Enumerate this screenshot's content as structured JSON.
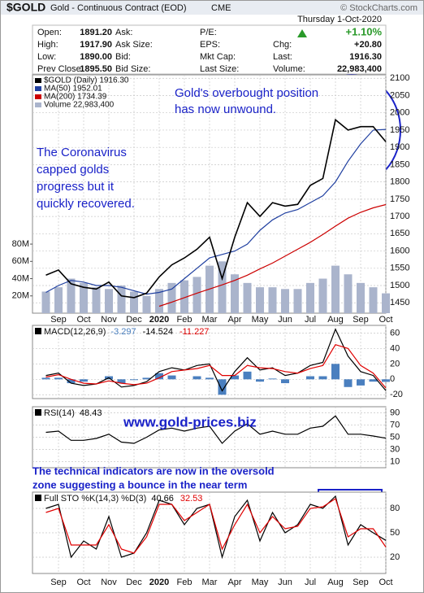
{
  "header": {
    "symbol": "$GOLD",
    "name": "Gold - Continuous Contract (EOD)",
    "exchange": "CME",
    "credit": "© StockCharts.com",
    "date": "Thursday  1-Oct-2020",
    "quote": [
      [
        {
          "label": "Open:",
          "value": "1891.20"
        },
        {
          "label": "Ask:"
        },
        {
          "label": "P/E:"
        },
        {
          "value": "+1.10%"
        }
      ],
      [
        {
          "label": "High:",
          "value": "1917.90"
        },
        {
          "label": "Ask Size:"
        },
        {
          "label": "EPS:"
        },
        {
          "label": "Chg:",
          "value": "+20.80"
        }
      ],
      [
        {
          "label": "Low:",
          "value": "1890.00"
        },
        {
          "label": "Bid:"
        },
        {
          "label": "Mkt Cap:"
        },
        {
          "label": "Last:",
          "value": "1916.30"
        }
      ],
      [
        {
          "label": "Prev Close:",
          "value": "1895.50"
        },
        {
          "label": "Bid Size:"
        },
        {
          "label": "Last Size:"
        },
        {
          "label": "Volume:",
          "value": "22,983,400"
        }
      ]
    ]
  },
  "annotations": [
    {
      "lines": [
        "Gold's overbought position",
        "has now unwound."
      ]
    },
    {
      "lines": [
        "The Coronavirus",
        "capped golds",
        "progress but it",
        "quickly recovered."
      ]
    },
    {
      "lines": [
        "www.gold-prices.biz"
      ]
    },
    {
      "lines": [
        "The technical indicators are now in the oversold",
        "zone suggesting a bounce in the near term"
      ]
    }
  ],
  "chart_data": [
    {
      "type": "line",
      "categories": [
        null,
        "Sep",
        null,
        "Oct",
        null,
        "Nov",
        null,
        "Dec",
        null,
        "2020",
        null,
        "Feb",
        null,
        "Mar",
        null,
        "Apr",
        null,
        "May",
        null,
        "Jun",
        null,
        "Jul",
        null,
        "Aug",
        null,
        "Sep",
        null,
        "Oct"
      ],
      "ylim": [
        1420,
        2110
      ],
      "yticks": [
        1450,
        1500,
        1550,
        1600,
        1650,
        1700,
        1750,
        1800,
        1850,
        1900,
        1950,
        2000,
        2050,
        2100
      ],
      "y2lim": [
        0,
        276
      ],
      "y2ticks": [
        {
          "value": 20,
          "label": "20M"
        },
        {
          "value": 40,
          "label": "40M"
        },
        {
          "value": 60,
          "label": "60M"
        },
        {
          "value": 80,
          "label": "80M"
        }
      ],
      "grid": true,
      "series": [
        {
          "name": "Volume 22,983,400",
          "color": "#aab4cc",
          "style": "bar",
          "axis": "y2",
          "values": [
            25,
            30,
            40,
            35,
            30,
            28,
            32,
            25,
            20,
            28,
            35,
            38,
            42,
            55,
            60,
            45,
            35,
            30,
            30,
            28,
            28,
            35,
            40,
            55,
            45,
            35,
            30,
            22.98
          ]
        },
        {
          "name": "MA(200) 1734.39",
          "color": "#cc0000",
          "values": [
            null,
            null,
            null,
            null,
            null,
            null,
            null,
            null,
            null,
            1440,
            1452,
            1465,
            1478,
            1490,
            1502,
            1515,
            1530,
            1548,
            1565,
            1585,
            1605,
            1625,
            1648,
            1672,
            1695,
            1712,
            1725,
            1734.39
          ]
        },
        {
          "name": "MA(50) 1952.01",
          "color": "#1f3fa0",
          "values": [
            1480,
            1500,
            1515,
            1510,
            1500,
            1500,
            1495,
            1485,
            1475,
            1480,
            1490,
            1520,
            1550,
            1580,
            1590,
            1600,
            1620,
            1660,
            1690,
            1710,
            1720,
            1740,
            1760,
            1800,
            1860,
            1910,
            1950,
            1952.01
          ]
        },
        {
          "name": "$GOLD (Daily) 1916.30",
          "color": "#000000",
          "values": [
            1530,
            1545,
            1505,
            1495,
            1490,
            1510,
            1470,
            1465,
            1478,
            1525,
            1560,
            1580,
            1605,
            1640,
            1520,
            1640,
            1740,
            1700,
            1740,
            1730,
            1735,
            1790,
            1810,
            1980,
            1950,
            1960,
            1960,
            1916.3
          ]
        }
      ]
    },
    {
      "type": "line",
      "title": "MACD(12,26,9)",
      "ylim": [
        -25,
        70
      ],
      "yticks": [
        -20,
        0,
        20,
        40,
        60
      ],
      "grid": true,
      "series": [
        {
          "color": "#4a7fbf",
          "style": "bar",
          "values": [
            2,
            2,
            -5,
            -3,
            0,
            4,
            -5,
            -1,
            2,
            8,
            5,
            0,
            4,
            2,
            -20,
            5,
            10,
            -3,
            1,
            -5,
            0,
            4,
            4,
            20,
            -10,
            -8,
            -3,
            -3.297
          ]
        },
        {
          "color": "#000000",
          "values": [
            5,
            8,
            -5,
            -8,
            -6,
            2,
            -10,
            -8,
            -3,
            10,
            15,
            12,
            18,
            20,
            -15,
            10,
            28,
            12,
            15,
            5,
            8,
            18,
            22,
            65,
            30,
            10,
            5,
            -14.524
          ]
        },
        {
          "color": "#e00000",
          "values": [
            3,
            6,
            0,
            -5,
            -6,
            -2,
            -5,
            -7,
            -5,
            2,
            10,
            12,
            14,
            18,
            5,
            5,
            18,
            15,
            14,
            10,
            8,
            14,
            18,
            45,
            40,
            18,
            8,
            -11.227
          ]
        }
      ]
    },
    {
      "type": "line",
      "title": "RSI(14)",
      "ylim": [
        0,
        100
      ],
      "yticks": [
        10,
        30,
        50,
        70,
        90
      ],
      "grid": true,
      "series": [
        {
          "color": "#000000",
          "values": [
            58,
            60,
            45,
            45,
            48,
            55,
            42,
            40,
            50,
            62,
            65,
            60,
            65,
            68,
            40,
            60,
            72,
            55,
            60,
            55,
            55,
            65,
            68,
            85,
            55,
            55,
            52,
            48.43
          ]
        }
      ]
    },
    {
      "type": "line",
      "title": "Full STO %K(14,3) %D(3)",
      "ylim": [
        0,
        100
      ],
      "yticks": [
        20,
        50,
        80
      ],
      "grid": true,
      "series": [
        {
          "color": "#000000",
          "values": [
            80,
            85,
            20,
            40,
            30,
            70,
            20,
            25,
            50,
            90,
            85,
            60,
            80,
            85,
            20,
            70,
            90,
            40,
            75,
            50,
            60,
            85,
            80,
            95,
            35,
            60,
            50,
            40.66
          ]
        },
        {
          "color": "#e00000",
          "values": [
            75,
            80,
            35,
            35,
            35,
            60,
            30,
            25,
            45,
            85,
            85,
            65,
            75,
            85,
            30,
            60,
            85,
            50,
            70,
            55,
            58,
            80,
            82,
            92,
            45,
            55,
            55,
            32.53
          ]
        }
      ]
    }
  ]
}
